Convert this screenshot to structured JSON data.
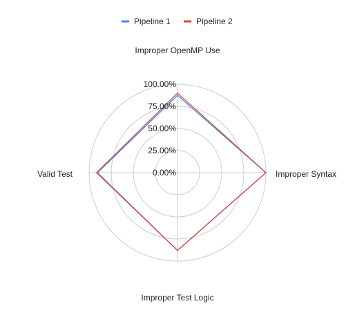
{
  "chart_data": {
    "type": "radar",
    "title": "",
    "axes": [
      "Improper OpenMP Use",
      "Improper Syntax",
      "Improper Test Logic",
      "Valid Test"
    ],
    "tick_labels": [
      "0.00%",
      "25.00%",
      "50.00%",
      "75.00%",
      "100.00%"
    ],
    "range": [
      0,
      100
    ],
    "grid": true,
    "legend_position": "top-center",
    "series": [
      {
        "name": "Pipeline 1",
        "color": "#4285f4",
        "values": [
          87.5,
          100,
          88,
          90.5
        ]
      },
      {
        "name": "Pipeline 2",
        "color": "#db4437",
        "values": [
          90,
          100,
          88,
          91.5
        ]
      }
    ]
  }
}
